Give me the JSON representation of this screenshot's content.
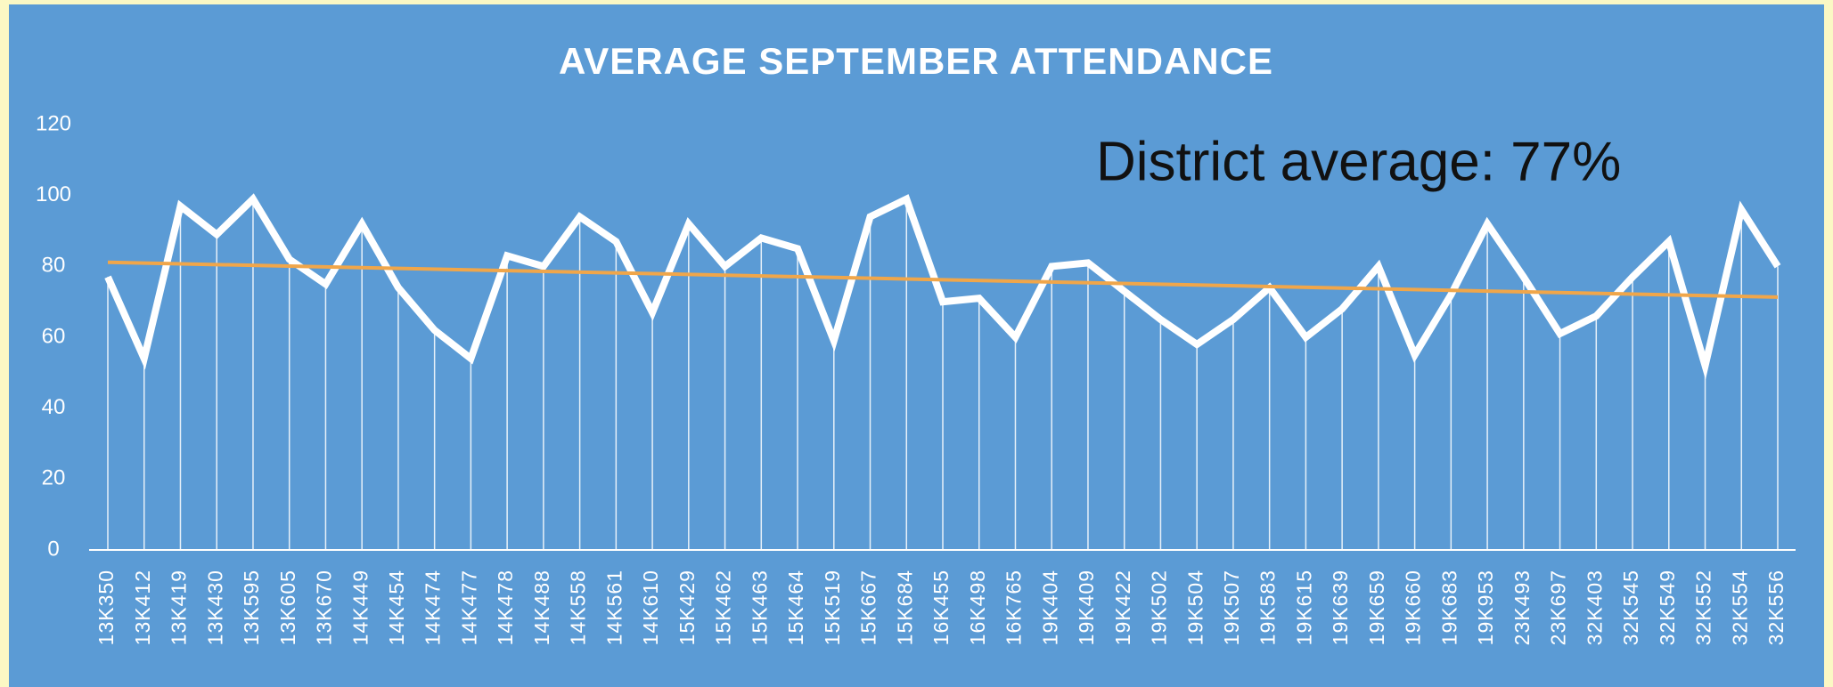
{
  "chart_data": {
    "type": "line",
    "title": "AVERAGE SEPTEMBER ATTENDANCE",
    "annotation": "District average: 77%",
    "categories": [
      "13K350",
      "13K412",
      "13K419",
      "13K430",
      "13K595",
      "13K605",
      "13K670",
      "14K449",
      "14K454",
      "14K474",
      "14K477",
      "14K478",
      "14K488",
      "14K558",
      "14K561",
      "14K610",
      "15K429",
      "15K462",
      "15K463",
      "15K464",
      "15K519",
      "15K667",
      "15K684",
      "16K455",
      "16K498",
      "16K765",
      "19K404",
      "19K409",
      "19K422",
      "19K502",
      "19K504",
      "19K507",
      "19K583",
      "19K615",
      "19K639",
      "19K659",
      "19K660",
      "19K683",
      "19K953",
      "23K493",
      "23K697",
      "32K403",
      "32K545",
      "32K549",
      "32K552",
      "32K554",
      "32K556"
    ],
    "values": [
      77,
      54,
      97,
      89,
      99,
      82,
      75,
      92,
      74,
      62,
      54,
      83,
      80,
      94,
      87,
      67,
      92,
      80,
      88,
      85,
      59,
      94,
      99,
      70,
      71,
      60,
      80,
      81,
      73,
      65,
      58,
      65,
      74,
      60,
      68,
      80,
      55,
      72,
      92,
      77,
      61,
      66,
      77,
      87,
      52,
      96,
      80
    ],
    "color": "#ffffff",
    "trendline": true,
    "trend_color": "#f0a64a",
    "ylim": [
      0,
      120
    ],
    "yticks": [
      0,
      20,
      40,
      60,
      80,
      100,
      120
    ],
    "grid": false
  }
}
